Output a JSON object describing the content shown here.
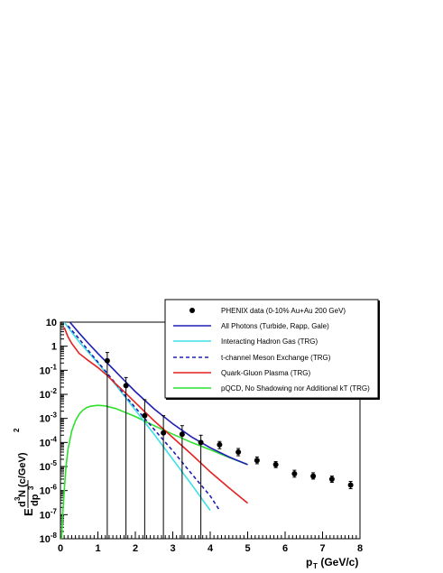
{
  "chart_data": {
    "type": "line",
    "xlim": [
      0,
      8
    ],
    "ylim": [
      1e-08,
      10
    ],
    "yscale": "log",
    "x_ticks": [
      0,
      1,
      2,
      3,
      4,
      5,
      6,
      7,
      8
    ],
    "y_ticks": [
      1e-08,
      1e-07,
      1e-06,
      1e-05,
      0.0001,
      0.001,
      0.01,
      0.1,
      1,
      10
    ],
    "xlabel": {
      "main": "p",
      "sub": "T",
      "rest": " (GeV/c)"
    },
    "ylabel": {
      "e": "E",
      "num_sup": "3",
      "num": "N (c/GeV)",
      "num_exp": "2",
      "den": "dp",
      "den_sup": "3",
      "d": "d"
    },
    "legend": [
      {
        "label": "PHENIX data (0-10% Au+Au 200 GeV)",
        "style": "marker",
        "color": "#000000"
      },
      {
        "label": "All Photons (Turbide, Rapp, Gale)",
        "style": "solid",
        "color": "#1f1fb4"
      },
      {
        "label": "Interacting Hadron Gas (TRG)",
        "style": "solid",
        "color": "#3fe0e6"
      },
      {
        "label": "t-channel Meson Exchange (TRG)",
        "style": "dashed",
        "color": "#1f1fb4"
      },
      {
        "label": "Quark-Gluon Plasma (TRG)",
        "style": "solid",
        "color": "#e62020"
      },
      {
        "label": "pQCD, No Shadowing nor Additional kT (TRG)",
        "style": "solid",
        "color": "#2fe02f"
      }
    ],
    "points": [
      {
        "x": 1.25,
        "y": 0.25,
        "lo": 1e-08,
        "hi": 0.55
      },
      {
        "x": 1.75,
        "y": 0.023,
        "lo": 1e-08,
        "hi": 0.05
      },
      {
        "x": 2.25,
        "y": 0.0013,
        "lo": 1e-08,
        "hi": 0.006
      },
      {
        "x": 2.75,
        "y": 0.00025,
        "lo": 1e-08,
        "hi": 0.0013
      },
      {
        "x": 3.25,
        "y": 0.00022,
        "lo": 1e-08,
        "hi": 0.0005
      },
      {
        "x": 3.75,
        "y": 0.0001,
        "lo": 1e-08,
        "hi": 0.0002
      },
      {
        "x": 4.25,
        "y": 8e-05,
        "lo": 5.5e-05,
        "hi": 0.00011
      },
      {
        "x": 4.75,
        "y": 4e-05,
        "lo": 2.8e-05,
        "hi": 5.6e-05
      },
      {
        "x": 5.25,
        "y": 1.8e-05,
        "lo": 1.3e-05,
        "hi": 2.5e-05
      },
      {
        "x": 5.75,
        "y": 1.2e-05,
        "lo": 9e-06,
        "hi": 1.6e-05
      },
      {
        "x": 6.25,
        "y": 5e-06,
        "lo": 3.6e-06,
        "hi": 7e-06
      },
      {
        "x": 6.75,
        "y": 4e-06,
        "lo": 3e-06,
        "hi": 5.5e-06
      },
      {
        "x": 7.25,
        "y": 3e-06,
        "lo": 2.2e-06,
        "hi": 4e-06
      },
      {
        "x": 7.75,
        "y": 1.7e-06,
        "lo": 1.2e-06,
        "hi": 2.4e-06
      }
    ],
    "series": [
      {
        "style": "solid",
        "color": "#2fe02f",
        "x": [
          0.03,
          0.06,
          0.1,
          0.15,
          0.2,
          0.3,
          0.4,
          0.5,
          0.6,
          0.7,
          0.8,
          1.0,
          1.2,
          1.5,
          2.0,
          2.5,
          3.0,
          3.5,
          4.0,
          4.5,
          5.0
        ],
        "y": [
          1e-08,
          1e-07,
          1e-06,
          1e-05,
          5e-05,
          0.0003,
          0.0008,
          0.0015,
          0.0022,
          0.0028,
          0.0032,
          0.0035,
          0.0033,
          0.0025,
          0.0012,
          0.0005,
          0.00022,
          0.0001,
          5e-05,
          2.4e-05,
          1.2e-05
        ]
      },
      {
        "style": "solid",
        "color": "#3fe0e6",
        "x": [
          0.1,
          0.3,
          0.5,
          0.75,
          1.0,
          1.25,
          1.5,
          1.75,
          2.0,
          2.5,
          3.0,
          3.5,
          4.0
        ],
        "y": [
          10,
          3.8,
          1.5,
          0.55,
          0.2,
          0.065,
          0.022,
          0.007,
          0.0022,
          0.00022,
          2e-05,
          1.8e-06,
          1.5e-07
        ]
      },
      {
        "style": "dashed",
        "color": "#1f1fb4",
        "x": [
          0.2,
          0.5,
          0.75,
          1.0,
          1.25,
          1.5,
          1.75,
          2.0,
          2.5,
          3.0,
          3.5,
          4.0,
          4.25
        ],
        "y": [
          7,
          2.0,
          0.65,
          0.22,
          0.075,
          0.025,
          0.008,
          0.0028,
          0.00035,
          4.5e-05,
          5e-06,
          6e-07,
          1.5e-07
        ]
      },
      {
        "style": "solid",
        "color": "#e62020",
        "x": [
          0.1,
          0.2,
          0.3,
          0.5,
          0.75,
          1.0,
          1.25,
          1.5,
          1.75,
          2.0,
          2.5,
          3.0,
          3.5,
          4.0,
          4.5,
          5.0
        ],
        "y": [
          6,
          2.5,
          1.3,
          0.5,
          0.25,
          0.13,
          0.06,
          0.025,
          0.011,
          0.0045,
          0.0008,
          0.00016,
          3.2e-05,
          6e-06,
          1.3e-06,
          3e-07
        ]
      },
      {
        "style": "solid",
        "color": "#1f1fb4",
        "x": [
          0.25,
          0.5,
          0.75,
          1.0,
          1.25,
          1.5,
          1.75,
          2.0,
          2.5,
          3.0,
          3.5,
          4.0,
          4.5,
          5.0
        ],
        "y": [
          10,
          3.5,
          1.3,
          0.5,
          0.2,
          0.08,
          0.032,
          0.013,
          0.0025,
          0.0006,
          0.00017,
          6e-05,
          2.5e-05,
          1.2e-05
        ]
      }
    ]
  }
}
